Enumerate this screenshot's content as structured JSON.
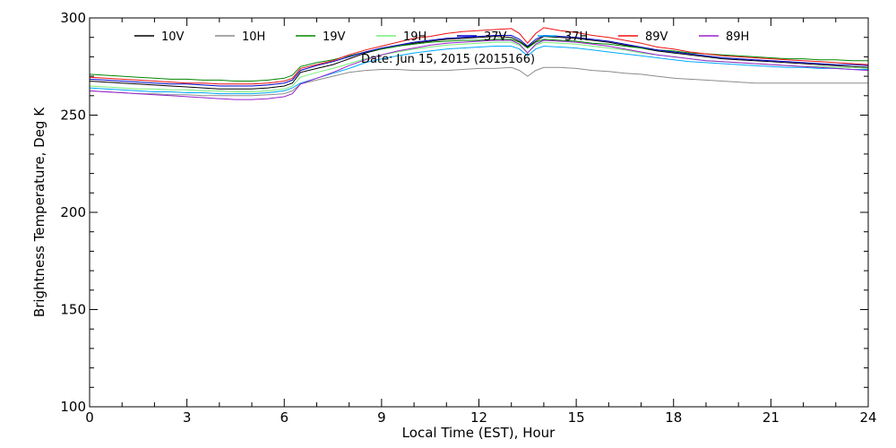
{
  "chart_data": {
    "type": "line",
    "title": "",
    "xlabel": "Local Time (EST), Hour",
    "ylabel": "Brightness Temperature, Deg K",
    "annotation": "Date: Jun 15, 2015 (2015166)",
    "xlim": [
      0,
      24
    ],
    "ylim": [
      100,
      300
    ],
    "xticks": [
      0,
      3,
      6,
      9,
      12,
      15,
      18,
      21,
      24
    ],
    "yticks": [
      100,
      150,
      200,
      250,
      300
    ],
    "grid": false,
    "legend_position": "top",
    "x": [
      0,
      0.5,
      1,
      1.5,
      2,
      2.5,
      3,
      3.5,
      4,
      4.5,
      5,
      5.5,
      6,
      6.25,
      6.5,
      7,
      7.5,
      8,
      8.5,
      9,
      9.5,
      10,
      10.5,
      11,
      11.5,
      12,
      12.5,
      13,
      13.25,
      13.5,
      13.75,
      14,
      14.5,
      15,
      15.5,
      16,
      16.5,
      17,
      17.5,
      18,
      18.5,
      19,
      19.5,
      20,
      20.5,
      21,
      21.5,
      22,
      22.5,
      23,
      23.5,
      24
    ],
    "series": [
      {
        "name": "10V",
        "color": "#000000",
        "values": [
          267.5,
          267,
          266.5,
          266,
          265.5,
          265,
          264.5,
          264,
          263.5,
          263.5,
          263.5,
          264,
          265,
          266.5,
          272,
          274,
          276,
          279,
          282,
          284,
          285.5,
          287,
          288,
          289,
          289.5,
          290,
          290.5,
          290,
          288,
          285,
          288,
          290.5,
          290,
          289.5,
          288.5,
          287.5,
          286,
          284.5,
          283,
          282,
          281,
          280,
          279,
          278.5,
          278,
          277.5,
          277,
          276.5,
          276,
          275.5,
          275,
          274.5
        ]
      },
      {
        "name": "10H",
        "color": "#8c8c8c",
        "values": [
          262.5,
          262,
          261.5,
          261,
          261,
          260.5,
          260.5,
          260,
          260,
          260,
          260,
          260.5,
          261,
          262.5,
          266,
          268,
          270,
          272,
          273,
          273.5,
          273.5,
          273,
          273,
          273,
          273.5,
          274,
          274,
          274.5,
          273,
          270,
          273,
          274.5,
          274.5,
          274,
          273,
          272.5,
          271.5,
          271,
          270,
          269,
          268.5,
          268,
          267.5,
          267,
          266.5,
          266.5,
          266.5,
          266.5,
          266.5,
          266.5,
          266.5,
          266.5
        ]
      },
      {
        "name": "19V",
        "color": "#008800",
        "values": [
          271,
          270.5,
          270,
          269.5,
          269,
          268.5,
          268.5,
          268,
          268,
          267.5,
          267.5,
          268,
          269,
          270.5,
          275,
          277,
          278.5,
          280.5,
          282.5,
          284,
          285.5,
          286.5,
          287.5,
          288,
          288.5,
          288.5,
          289,
          289,
          287.5,
          284.5,
          287.5,
          289,
          288.5,
          288,
          287,
          286.5,
          285.5,
          284.5,
          283.5,
          283,
          282,
          281.5,
          281,
          280.5,
          280,
          279.5,
          279,
          279,
          278.5,
          278.5,
          278,
          278
        ]
      },
      {
        "name": "19H",
        "color": "#77ee77",
        "values": [
          265,
          264.5,
          264,
          263.5,
          263.5,
          263,
          263,
          262.5,
          262.5,
          262,
          262,
          262.5,
          263.5,
          265,
          269.5,
          272,
          274,
          276.5,
          279,
          281,
          282.5,
          284,
          285,
          286,
          286.5,
          287,
          287.5,
          287.5,
          286,
          282,
          286,
          287.5,
          287,
          286.5,
          285.5,
          284.5,
          283.5,
          282,
          281,
          280,
          279,
          278,
          277.5,
          277,
          276.5,
          276,
          275.5,
          275,
          275,
          274.5,
          274.5,
          274
        ]
      },
      {
        "name": "37V",
        "color": "#0000cc",
        "values": [
          268.5,
          268,
          267.5,
          267,
          266.5,
          266,
          266,
          265.5,
          265,
          265,
          265,
          265.5,
          266.5,
          268,
          273,
          275.5,
          277.5,
          280,
          282.5,
          284.5,
          286,
          287.5,
          288.5,
          289.5,
          290,
          290.5,
          291,
          291,
          289,
          285.5,
          289,
          291,
          290.5,
          290,
          289,
          288,
          286.5,
          285,
          283.5,
          282.5,
          281.5,
          280.5,
          279.5,
          279,
          278.5,
          278,
          277.5,
          277,
          276.5,
          276,
          276,
          275.5
        ]
      },
      {
        "name": "37H",
        "color": "#00a8ff",
        "values": [
          264,
          263.5,
          263,
          262.5,
          262,
          262,
          261.5,
          261.5,
          261,
          261,
          261,
          261.5,
          262.5,
          264,
          266.5,
          269,
          271.5,
          274,
          277,
          279,
          280.5,
          282,
          283,
          284,
          284.5,
          285,
          285.5,
          285.5,
          284,
          280.5,
          284,
          285.5,
          285,
          284.5,
          283.5,
          282.5,
          281.5,
          280.5,
          279.5,
          278.5,
          277.5,
          277,
          276.5,
          276,
          275.5,
          275,
          274.5,
          274.5,
          274,
          274,
          273.5,
          273.5
        ]
      },
      {
        "name": "89V",
        "color": "#ee1111",
        "values": [
          269.5,
          269,
          268.5,
          268,
          267.5,
          267,
          266.5,
          266.5,
          266,
          266,
          266,
          266.5,
          267.5,
          269,
          274,
          276,
          278,
          281,
          283.5,
          285.5,
          287.5,
          289.5,
          290.5,
          292,
          293,
          293.5,
          294,
          294.5,
          292,
          287,
          292,
          295,
          293.5,
          292.5,
          291,
          290,
          288.5,
          287,
          285,
          284,
          282.5,
          281.5,
          280.5,
          280,
          279.5,
          279,
          278.5,
          278,
          277.5,
          277,
          276.5,
          276
        ]
      },
      {
        "name": "89H",
        "color": "#9922cc",
        "values": [
          262.5,
          262,
          261.5,
          261,
          260.5,
          260,
          259.5,
          259,
          258.5,
          258,
          258,
          258.5,
          259.5,
          261,
          266,
          269,
          272,
          275.5,
          278.5,
          281,
          283,
          284.5,
          286,
          287,
          287.5,
          288,
          288.5,
          288.5,
          286.5,
          282,
          286.5,
          288.5,
          288,
          287.5,
          286.5,
          285.5,
          284,
          282.5,
          281,
          280,
          279,
          278,
          277.5,
          277,
          276.5,
          276,
          275.5,
          275,
          274.5,
          274,
          273.5,
          273
        ]
      }
    ]
  }
}
